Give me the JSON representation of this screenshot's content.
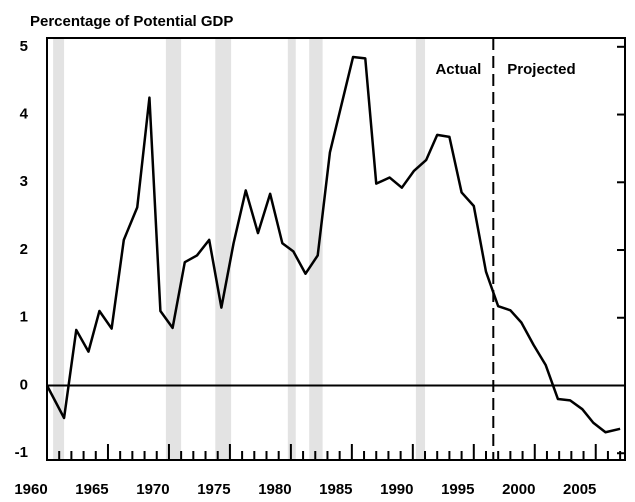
{
  "chart_data": {
    "type": "line",
    "title": "Percentage of Potential GDP",
    "x": [
      1960,
      1961.4,
      1962.4,
      1963.4,
      1964.3,
      1965.3,
      1966.3,
      1967.4,
      1968.4,
      1969.3,
      1970.3,
      1971.3,
      1972.3,
      1973.3,
      1974.3,
      1975.3,
      1976.3,
      1977.3,
      1978.3,
      1979.3,
      1980.2,
      1981.2,
      1982.2,
      1983.2,
      1985.1,
      1986.1,
      1987.0,
      1988.1,
      1989.1,
      1990.1,
      1991.1,
      1992.0,
      1993.0,
      1994.0,
      1995.0,
      1996.0,
      1997.0,
      1998.0,
      1998.9,
      1999.9,
      2000.9,
      2001.9,
      2002.9,
      2003.9,
      2004.8,
      2005.8,
      2007.0
    ],
    "series": [
      {
        "color": "#000000",
        "values": [
          0,
          -0.48,
          0.82,
          0.5,
          1.1,
          0.84,
          2.15,
          2.63,
          4.25,
          1.1,
          0.85,
          1.82,
          1.92,
          2.15,
          1.15,
          2.1,
          2.88,
          2.25,
          2.83,
          2.1,
          1.98,
          1.65,
          1.92,
          3.44,
          4.85,
          4.83,
          2.98,
          3.07,
          2.92,
          3.17,
          3.33,
          3.7,
          3.67,
          2.85,
          2.65,
          1.68,
          1.17,
          1.11,
          0.93,
          0.6,
          0.3,
          -0.2,
          -0.22,
          -0.35,
          -0.55,
          -0.69,
          -0.64
        ]
      }
    ],
    "xlim": [
      1960,
      2007.4
    ],
    "ylim": [
      -1.1,
      5.13
    ],
    "xticks": [
      1960,
      1965,
      1970,
      1975,
      1980,
      1985,
      1990,
      1995,
      2000,
      2005
    ],
    "xminorticks": [
      1961,
      1962,
      1963,
      1964,
      1966,
      1967,
      1968,
      1969,
      1971,
      1972,
      1973,
      1974,
      1976,
      1977,
      1978,
      1979,
      1981,
      1982,
      1983,
      1984,
      1986,
      1987,
      1988,
      1989,
      1991,
      1992,
      1993,
      1994,
      1996,
      1997,
      1998,
      1999,
      2001,
      2002,
      2003,
      2004,
      2006,
      2007
    ],
    "yticks": [
      -1,
      0,
      1,
      2,
      3,
      4,
      5
    ],
    "recessions": [
      [
        1960.5,
        1961.4
      ],
      [
        1969.75,
        1971
      ],
      [
        1973.8,
        1975.1
      ],
      [
        1979.75,
        1980.4
      ],
      [
        1981.5,
        1982.6
      ],
      [
        1990.25,
        1991
      ]
    ],
    "divider": 1996.6,
    "annotations": [
      "Actual",
      "Projected"
    ]
  }
}
